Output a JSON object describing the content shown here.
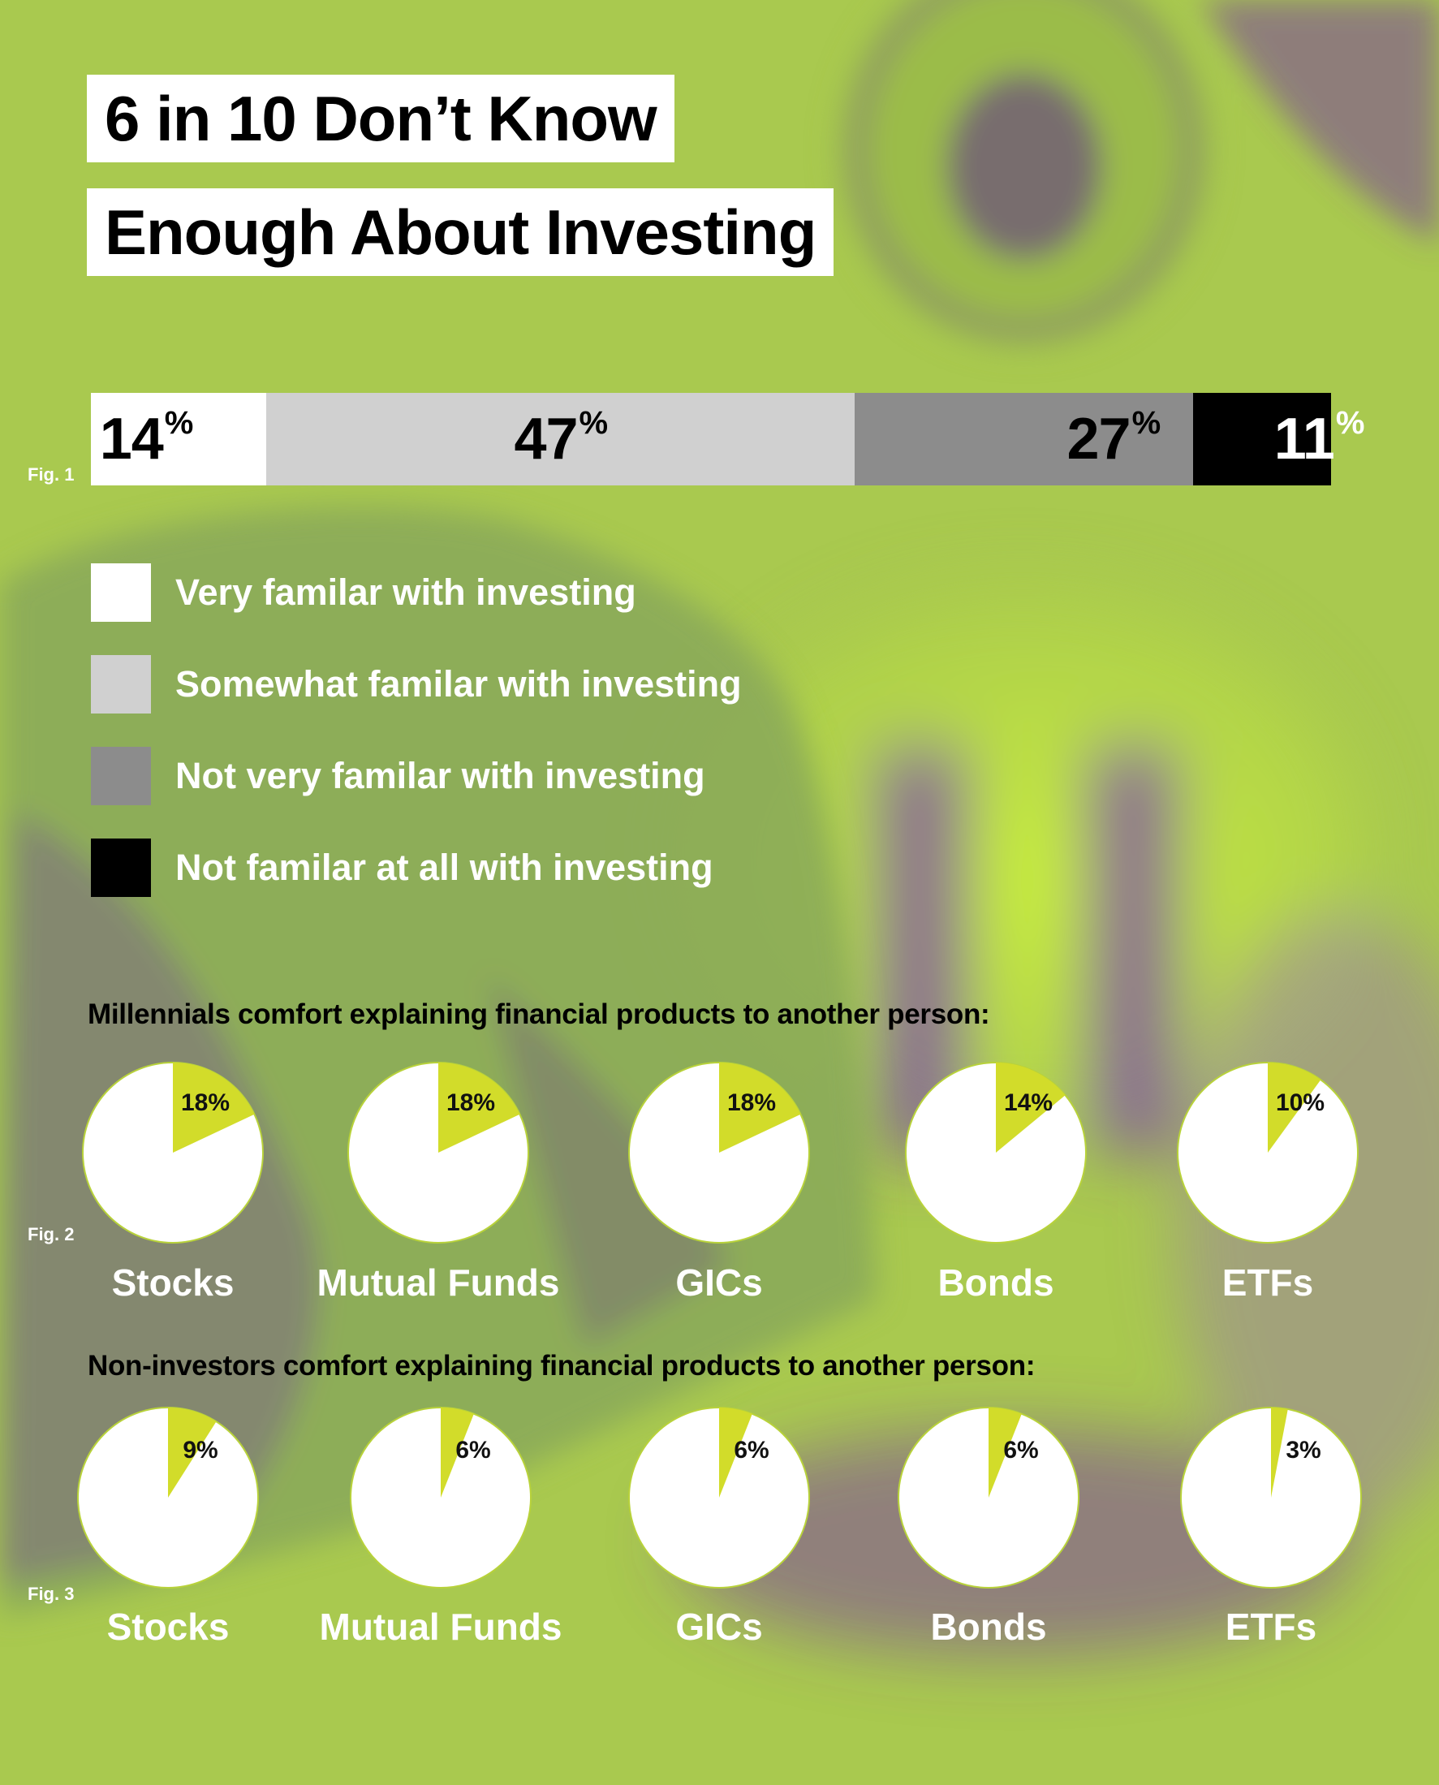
{
  "title": {
    "line1": "6 in 10 Don’t Know",
    "line2": "Enough About Investing"
  },
  "colors": {
    "background": "#a9c94f",
    "accent_pie": "#d2dc2a",
    "seg_white": "#ffffff",
    "seg_light_gray": "#d0d0d0",
    "seg_dark_gray": "#8c8c8c",
    "seg_black": "#000000"
  },
  "figures": {
    "fig1": "Fig. 1",
    "fig2": "Fig. 2",
    "fig3": "Fig. 3"
  },
  "chart_data": [
    {
      "type": "bar",
      "orientation": "horizontal-stacked-100",
      "segments": [
        {
          "label": "Very familar with investing",
          "value": 14,
          "display": "14",
          "unit": "%",
          "color": "#ffffff",
          "text_color": "#000000"
        },
        {
          "label": "Somewhat familar with investing",
          "value": 47,
          "display": "47",
          "unit": "%",
          "color": "#d0d0d0",
          "text_color": "#000000"
        },
        {
          "label": "Not very familar with investing",
          "value": 27,
          "display": "27",
          "unit": "%",
          "color": "#8c8c8c",
          "text_color": "#000000"
        },
        {
          "label": "Not familar at all with investing",
          "value": 11,
          "display": "11",
          "unit": "%",
          "color": "#000000",
          "text_color": "#ffffff"
        }
      ],
      "legend_position": "below"
    },
    {
      "type": "pie",
      "title": "Millennials comfort explaining financial products to another person:",
      "items": [
        {
          "category": "Stocks",
          "value": 18,
          "label": "18%"
        },
        {
          "category": "Mutual Funds",
          "value": 18,
          "label": "18%"
        },
        {
          "category": "GICs",
          "value": 18,
          "label": "18%"
        },
        {
          "category": "Bonds",
          "value": 14,
          "label": "14%"
        },
        {
          "category": "ETFs",
          "value": 10,
          "label": "10%"
        }
      ]
    },
    {
      "type": "pie",
      "title": "Non-investors comfort explaining financial products to another person:",
      "items": [
        {
          "category": "Stocks",
          "value": 9,
          "label": "9%"
        },
        {
          "category": "Mutual Funds",
          "value": 6,
          "label": "6%"
        },
        {
          "category": "GICs",
          "value": 6,
          "label": "6%"
        },
        {
          "category": "Bonds",
          "value": 6,
          "label": "6%"
        },
        {
          "category": "ETFs",
          "value": 3,
          "label": "3%"
        }
      ]
    }
  ]
}
